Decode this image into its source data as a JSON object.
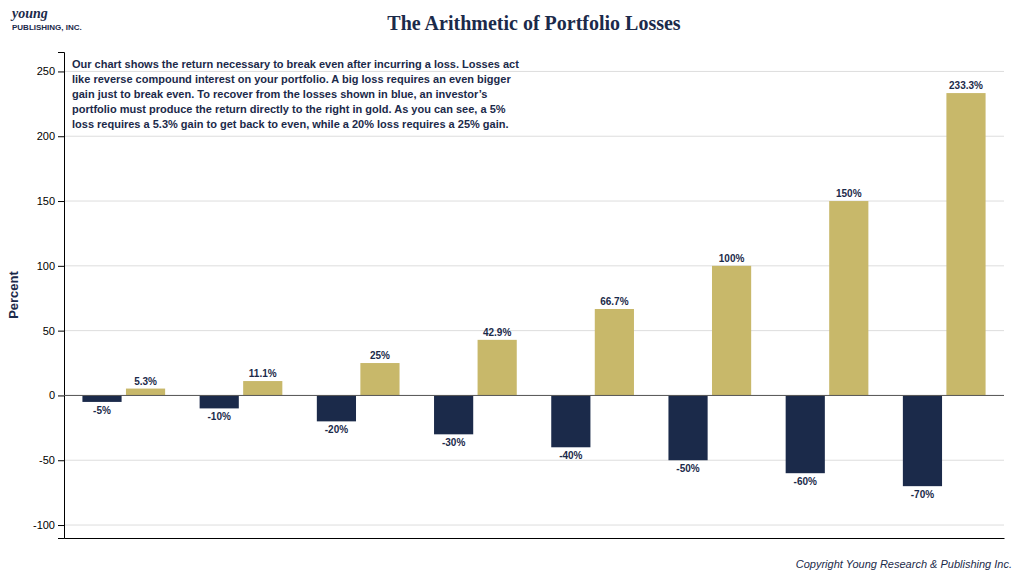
{
  "chart_data": {
    "type": "bar",
    "title": "The Arithmetic of Portfolio Losses",
    "ylabel": "Percent",
    "annotations": [
      "Our chart shows the return necessary to break even after incurring a loss. Losses act",
      "like reverse compound interest on your portfolio. A big loss requires an even bigger",
      "gain just to break even. To recover from the losses shown in blue, an investor’s",
      "portfolio must produce the return directly to the right in gold. As you can see, a 5%",
      "loss requires a 5.3% gain to get back to even, while a 20% loss requires a 25% gain."
    ],
    "copyright": "Copyright Young Research & Publishing Inc.",
    "logo_text": [
      "young",
      "PUBLISHING, INC."
    ],
    "categories": [
      null,
      null,
      null,
      null,
      null,
      null,
      null,
      null
    ],
    "series": [
      {
        "color": "#1b2a4a",
        "values": [
          -5,
          -10,
          -20,
          -30,
          -40,
          -50,
          -60,
          -70
        ],
        "value_labels": [
          "-5%",
          "-10%",
          "-20%",
          "-30%",
          "-40%",
          "-50%",
          "-60%",
          "-70%"
        ]
      },
      {
        "color": "#c8b86a",
        "values": [
          5.3,
          11.1,
          25.0,
          42.9,
          66.7,
          100.0,
          150.0,
          233.3
        ],
        "value_labels": [
          "5.3%",
          "11.1%",
          "25%",
          "42.9%",
          "66.7%",
          "100%",
          "150%",
          "233.3%"
        ]
      }
    ],
    "ylim": [
      -110,
      265
    ],
    "yticks": [
      -100,
      -50,
      0,
      50,
      100,
      150,
      200,
      250
    ],
    "grid": true,
    "data_labels": true,
    "tick_labels": "y"
  }
}
